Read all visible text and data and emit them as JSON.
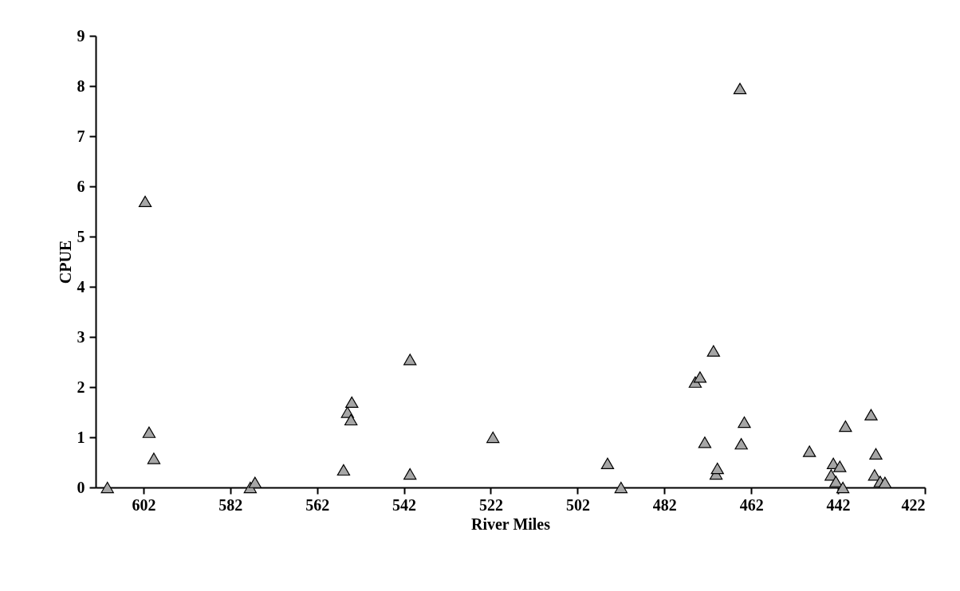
{
  "chart_data": {
    "type": "scatter",
    "xlabel": "River Miles",
    "ylabel": "CPUE",
    "marker": "triangle",
    "grid": false,
    "xlim": [
      613,
      422
    ],
    "xticks": [
      602,
      582,
      562,
      542,
      522,
      502,
      482,
      462,
      442,
      422
    ],
    "ylim": [
      0,
      9
    ],
    "yticks": [
      0,
      1,
      2,
      3,
      4,
      5,
      6,
      7,
      8,
      9
    ],
    "series": [
      {
        "color": "#a6a6a6",
        "x": [
          610.3,
          601.6,
          600.7,
          599.6,
          577.4,
          576.3,
          555.9,
          555.0,
          554.2,
          554.0,
          540.6,
          540.6,
          521.5,
          495.1,
          492.0,
          474.9,
          473.8,
          472.7,
          470.7,
          470.1,
          469.8,
          464.6,
          464.3,
          463.6,
          448.6,
          443.6,
          443.1,
          442.5,
          441.6,
          440.9,
          440.3,
          434.4,
          433.6,
          433.3,
          432.3,
          431.2
        ],
        "values": [
          0,
          5.7,
          1.1,
          0.58,
          0,
          0.1,
          0.35,
          1.5,
          1.35,
          1.7,
          0.27,
          2.55,
          1.0,
          0.48,
          0,
          2.1,
          2.2,
          0.9,
          2.72,
          0.27,
          0.38,
          7.95,
          0.87,
          1.3,
          0.72,
          0.25,
          0.48,
          0.12,
          0.42,
          0,
          1.22,
          1.45,
          0.25,
          0.67,
          0.12,
          0.1
        ]
      }
    ]
  }
}
